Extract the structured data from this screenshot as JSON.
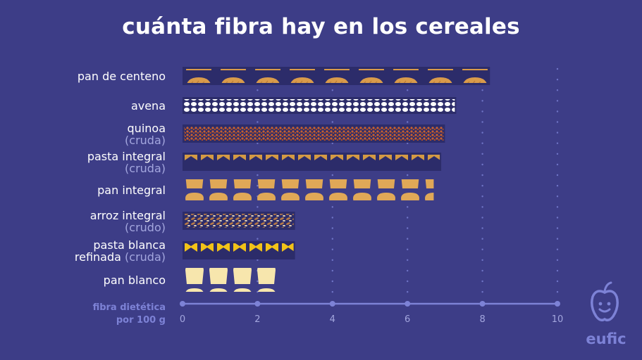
{
  "title": "cuánta fibra hay en los cereales",
  "colors": {
    "background": "#3d3d87",
    "bar_background": "#2c2c6a",
    "grid": "#6f74c6",
    "axis": "#7d82d6",
    "bread": "#d99b4b",
    "oats": "#ffffff",
    "quinoa": "#c9612f",
    "pasta_integral": "#d49a44",
    "pan_integral": "#e0a857",
    "arroz": "#b97a45",
    "pasta_blanca": "#f2c318",
    "pan_blanco": "#f7e6ad"
  },
  "chart_data": {
    "type": "bar",
    "orientation": "horizontal",
    "title": "cuánta fibra hay en los cereales",
    "xlabel": "fibra dietética por 100 g",
    "xlim": [
      0,
      10
    ],
    "xticks": [
      "0",
      "2",
      "4",
      "6",
      "8",
      "10"
    ],
    "categories": [
      "pan de centeno",
      "avena",
      "quinoa (cruda)",
      "pasta integral (cruda)",
      "pan integral",
      "arroz integral (crudo)",
      "pasta blanca refinada (cruda)",
      "pan blanco"
    ],
    "labels": [
      {
        "line1": "pan de centeno",
        "line1_sub": "",
        "line2": ""
      },
      {
        "line1": "avena",
        "line1_sub": "",
        "line2": ""
      },
      {
        "line1": "quinoa",
        "line1_sub": "",
        "line2": "(cruda)"
      },
      {
        "line1": "pasta integral",
        "line1_sub": "",
        "line2": "(cruda)"
      },
      {
        "line1": "pan integral",
        "line1_sub": "",
        "line2": ""
      },
      {
        "line1": "arroz integral",
        "line1_sub": "",
        "line2": "(crudo)"
      },
      {
        "line1": "pasta blanca",
        "line1_sub": "",
        "line2": "refinada",
        "line2_sub": "(cruda)"
      },
      {
        "line1": "pan blanco",
        "line1_sub": "",
        "line2": ""
      }
    ],
    "values": [
      8.2,
      7.3,
      7.0,
      6.9,
      6.7,
      3.0,
      3.0,
      2.5
    ],
    "icons": [
      "rye-bread-icon",
      "oat-icon",
      "quinoa-icon",
      "farfalle-icon",
      "toast-icon",
      "rice-icon",
      "farfalle-icon",
      "toast-icon"
    ],
    "icon_colors": [
      "#d99b4b",
      "#ffffff",
      "#c9612f",
      "#d49a44",
      "#e0a857",
      "#b97a45",
      "#f2c318",
      "#f7e6ad"
    ],
    "grid": "dotted vertical"
  },
  "logo": {
    "text": "eufic",
    "icon": "apple-face-icon"
  }
}
